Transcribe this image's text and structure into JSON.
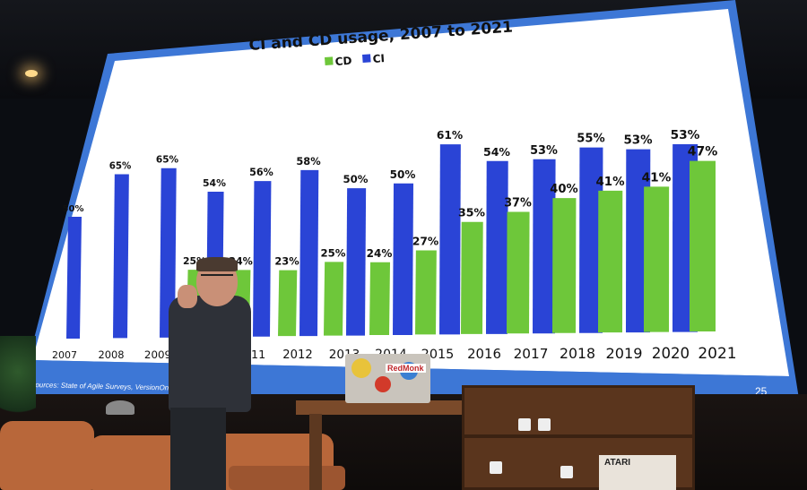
{
  "slide": {
    "footer_source": "Sources: State of Agile Surveys, VersionOne/CollabNet/digital.ai",
    "page_number": "25"
  },
  "colors": {
    "cd": "#6ec73a",
    "ci": "#2a44d6",
    "slide_bg": "#ffffff",
    "slide_border": "#3d77d6"
  },
  "chart_data": {
    "type": "bar",
    "title": "CI and CD usage, 2007 to 2021",
    "legend_position": "top-center",
    "categories": [
      "2007",
      "2008",
      "2009",
      "2010",
      "2011",
      "2012",
      "2013",
      "2014",
      "2015",
      "2016",
      "2017",
      "2018",
      "2019",
      "2020",
      "2021"
    ],
    "series": [
      {
        "name": "CD",
        "values": [
          null,
          null,
          null,
          25,
          24,
          23,
          25,
          24,
          27,
          35,
          37,
          40,
          41,
          41,
          47
        ]
      },
      {
        "name": "CI",
        "values": [
          50,
          65,
          65,
          54,
          56,
          58,
          50,
          50,
          61,
          54,
          53,
          55,
          53,
          53,
          null
        ]
      }
    ],
    "data_labels": {
      "CD": [
        "",
        "",
        "",
        "25%",
        "24%",
        "23%",
        "25%",
        "24%",
        "27%",
        "35%",
        "37%",
        "40%",
        "41%",
        "41%",
        "47%"
      ],
      "CI": [
        "50%",
        "65%",
        "65%",
        "54%",
        "56%",
        "58%",
        "50%",
        "50%",
        "61%",
        "54%",
        "53%",
        "55%",
        "53%",
        "53%",
        ""
      ]
    },
    "ylim": [
      0,
      65
    ],
    "grid": false
  },
  "scene": {
    "laptop_sticker_text": "RedMonk",
    "console_label": "ATARI"
  }
}
